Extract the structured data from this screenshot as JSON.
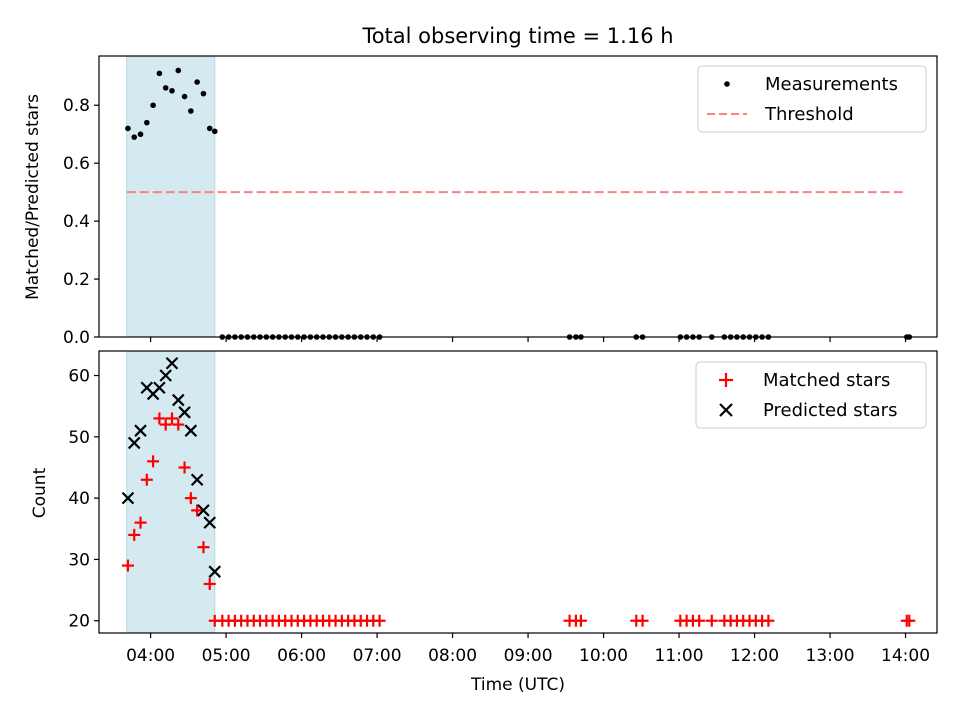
{
  "chart_data": [
    {
      "type": "scatter",
      "title": "Total observing time = 1.16 h",
      "xlabel": "",
      "ylabel": "Matched/Predicted stars",
      "ylim": [
        0,
        0.97
      ],
      "yticks": [
        0.0,
        0.2,
        0.4,
        0.6,
        0.8
      ],
      "yticklabels": [
        "0.0",
        "0.2",
        "0.4",
        "0.6",
        "0.8"
      ],
      "grid": false,
      "legend_position": "top-right",
      "highlight_span": [
        "03:41",
        "04:51"
      ],
      "highlight_color": "#d4eaf0",
      "series": [
        {
          "name": "Measurements",
          "marker": "dot",
          "color": "#000000",
          "x": [
            "03:42",
            "03:47",
            "03:52",
            "03:57",
            "04:02",
            "04:07",
            "04:12",
            "04:17",
            "04:22",
            "04:27",
            "04:32",
            "04:37",
            "04:42",
            "04:47",
            "04:51",
            "04:57",
            "05:02",
            "05:07",
            "05:12",
            "05:17",
            "05:22",
            "05:27",
            "05:32",
            "05:37",
            "05:42",
            "05:47",
            "05:52",
            "05:57",
            "06:02",
            "06:07",
            "06:12",
            "06:17",
            "06:22",
            "06:27",
            "06:32",
            "06:37",
            "06:42",
            "06:47",
            "06:52",
            "06:57",
            "07:02",
            "09:33",
            "09:38",
            "09:42",
            "10:26",
            "10:31",
            "11:01",
            "11:06",
            "11:11",
            "11:16",
            "11:26",
            "11:36",
            "11:41",
            "11:46",
            "11:51",
            "11:56",
            "12:01",
            "12:06",
            "12:11",
            "14:01",
            "14:03"
          ],
          "y": [
            0.72,
            0.69,
            0.7,
            0.74,
            0.8,
            0.91,
            0.86,
            0.85,
            0.92,
            0.83,
            0.78,
            0.88,
            0.84,
            0.72,
            0.71,
            0,
            0,
            0,
            0,
            0,
            0,
            0,
            0,
            0,
            0,
            0,
            0,
            0,
            0,
            0,
            0,
            0,
            0,
            0,
            0,
            0,
            0,
            0,
            0,
            0,
            0,
            0,
            0,
            0,
            0,
            0,
            0,
            0,
            0,
            0,
            0,
            0,
            0,
            0,
            0,
            0,
            0,
            0,
            0,
            0,
            0
          ]
        },
        {
          "name": "Threshold",
          "marker": "dashed-line",
          "color": "#ff8080",
          "x": [
            "03:41",
            "14:00"
          ],
          "y": [
            0.5,
            0.5
          ]
        }
      ]
    },
    {
      "type": "scatter",
      "title": "",
      "xlabel": "Time (UTC)",
      "ylabel": "Count",
      "ylim": [
        18,
        64
      ],
      "yticks": [
        20,
        30,
        40,
        50,
        60
      ],
      "yticklabels": [
        "20",
        "30",
        "40",
        "50",
        "60"
      ],
      "xticks": [
        "04:00",
        "05:00",
        "06:00",
        "07:00",
        "08:00",
        "09:00",
        "10:00",
        "11:00",
        "12:00",
        "13:00",
        "14:00"
      ],
      "xlim": [
        "03:19",
        "14:25"
      ],
      "grid": false,
      "legend_position": "top-right",
      "highlight_span": [
        "03:41",
        "04:51"
      ],
      "highlight_color": "#d4eaf0",
      "series": [
        {
          "name": "Matched stars",
          "marker": "plus",
          "color": "#ff0000",
          "x": [
            "03:42",
            "03:47",
            "03:52",
            "03:57",
            "04:02",
            "04:07",
            "04:12",
            "04:17",
            "04:22",
            "04:27",
            "04:32",
            "04:37",
            "04:42",
            "04:47",
            "04:51",
            "04:57",
            "05:02",
            "05:07",
            "05:12",
            "05:17",
            "05:22",
            "05:27",
            "05:32",
            "05:37",
            "05:42",
            "05:47",
            "05:52",
            "05:57",
            "06:02",
            "06:07",
            "06:12",
            "06:17",
            "06:22",
            "06:27",
            "06:32",
            "06:37",
            "06:42",
            "06:47",
            "06:52",
            "06:57",
            "07:02",
            "09:33",
            "09:38",
            "09:42",
            "10:26",
            "10:31",
            "11:01",
            "11:06",
            "11:11",
            "11:16",
            "11:26",
            "11:36",
            "11:41",
            "11:46",
            "11:51",
            "11:56",
            "12:01",
            "12:06",
            "12:11",
            "14:01",
            "14:03"
          ],
          "y": [
            29,
            34,
            36,
            43,
            46,
            53,
            52,
            53,
            52,
            45,
            40,
            38,
            32,
            26,
            20,
            20,
            20,
            20,
            20,
            20,
            20,
            20,
            20,
            20,
            20,
            20,
            20,
            20,
            20,
            20,
            20,
            20,
            20,
            20,
            20,
            20,
            20,
            20,
            20,
            20,
            20,
            20,
            20,
            20,
            20,
            20,
            20,
            20,
            20,
            20,
            20,
            20,
            20,
            20,
            20,
            20,
            20,
            20,
            20,
            20,
            20
          ]
        },
        {
          "name": "Predicted stars",
          "marker": "x",
          "color": "#000000",
          "x": [
            "03:42",
            "03:47",
            "03:52",
            "03:57",
            "04:02",
            "04:07",
            "04:12",
            "04:17",
            "04:22",
            "04:27",
            "04:32",
            "04:37",
            "04:42",
            "04:47",
            "04:51"
          ],
          "y": [
            40,
            49,
            51,
            58,
            57,
            58,
            60,
            62,
            56,
            54,
            51,
            43,
            38,
            36,
            28
          ]
        }
      ]
    }
  ]
}
